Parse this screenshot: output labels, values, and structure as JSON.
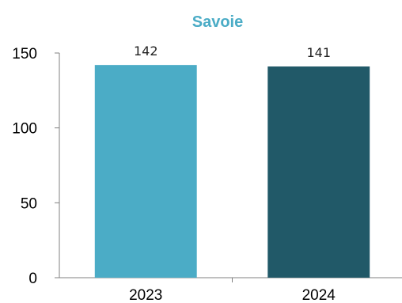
{
  "chart_data": {
    "type": "bar",
    "title": "Savoie",
    "categories": [
      "2023",
      "2024"
    ],
    "values": [
      142,
      141
    ],
    "data_labels": [
      "142",
      "141"
    ],
    "y_ticks": [
      "0",
      "50",
      "100",
      "150"
    ],
    "ylim": [
      0,
      150
    ],
    "grid": false,
    "legend": "none",
    "colors": {
      "title": "#4BACC6",
      "bars": [
        "#4BACC6",
        "#215968"
      ],
      "axis": "#808080"
    }
  }
}
